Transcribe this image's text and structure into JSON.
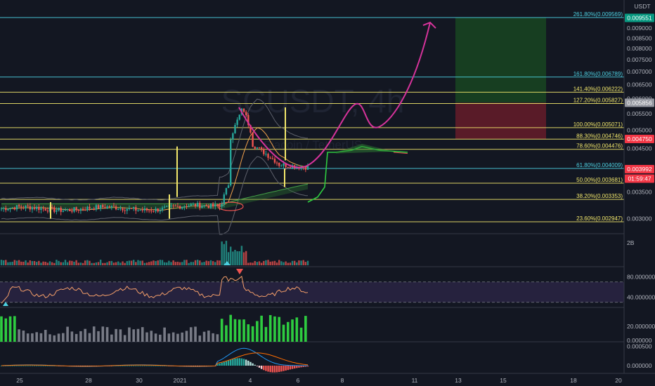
{
  "watermark": {
    "symbol": "SCUSDT, 4h",
    "subtitle": "Siacoin / TetherUS"
  },
  "currency_label": "USDT",
  "colors": {
    "background": "#131722",
    "bull": "#26a69a",
    "bear": "#ef5350",
    "fib_yellow": "#f2e76b",
    "fib_cyan": "#4dd0e1",
    "arrow": "#d6339b",
    "target_zone": "#1b5e20",
    "stop_zone": "#6b1d2a"
  },
  "chart_data": {
    "type": "candlestick",
    "x_ticks": [
      "25",
      "28",
      "30",
      "2021",
      "4",
      "6",
      "8",
      "11",
      "13",
      "15",
      "18",
      "20"
    ],
    "price_ticks": [
      "0.009000",
      "0.008500",
      "0.008000",
      "0.007500",
      "0.007000",
      "0.006500",
      "0.006000",
      "0.005500",
      "0.005000",
      "0.004500",
      "0.003500",
      "0.003000"
    ],
    "price_range": [
      0.00265,
      0.0102
    ],
    "price_scale": "log",
    "fib_levels": [
      {
        "label": "261.80%(0.009569)",
        "price": 0.009569,
        "color": "#4dd0e1"
      },
      {
        "label": "161.80%(0.006789)",
        "price": 0.006789,
        "color": "#4dd0e1"
      },
      {
        "label": "141.40%(0.006222)",
        "price": 0.006222,
        "color": "#f2e76b"
      },
      {
        "label": "127.20%(0.005827)",
        "price": 0.005827,
        "color": "#f2e76b"
      },
      {
        "label": "100.00%(0.005071)",
        "price": 0.005071,
        "color": "#f2e76b"
      },
      {
        "label": "88.30%(0.004746)",
        "price": 0.004746,
        "color": "#f2e76b"
      },
      {
        "label": "78.60%(0.004476)",
        "price": 0.004476,
        "color": "#f2e76b"
      },
      {
        "label": "61.80%(0.004009)",
        "price": 0.004009,
        "color": "#4dd0e1"
      },
      {
        "label": "50.00%(0.003681)",
        "price": 0.003681,
        "color": "#f2e76b"
      },
      {
        "label": "38.20%(0.003353)",
        "price": 0.003353,
        "color": "#f2e76b"
      },
      {
        "label": "23.60%(0.002947)",
        "price": 0.002947,
        "color": "#f2e76b"
      }
    ],
    "price_tags": [
      {
        "text": "0.009551",
        "price": 0.009551,
        "bg": "#089981"
      },
      {
        "text": "0.005856",
        "price": 0.005856,
        "bg": "#9598a1"
      },
      {
        "text": "0.004750",
        "price": 0.00475,
        "bg": "#f23645"
      },
      {
        "text": "0.003992",
        "price": 0.003992,
        "bg": "#f23645"
      },
      {
        "text": "01:59:47",
        "price": 0.00378,
        "bg": "#f23645"
      }
    ],
    "volume_axis_label": "2B",
    "rsi_ticks": [
      "80.000000",
      "40.000000"
    ],
    "rsi_range": [
      20,
      100
    ],
    "rsi_band": [
      30,
      70
    ],
    "momentum_ticks": [
      "20.000000",
      "0.000000"
    ],
    "momentum_range": [
      0,
      40
    ],
    "macd_ticks": [
      "0.000500",
      "0.000000"
    ],
    "macd_range": [
      -0.0002,
      0.0006
    ]
  }
}
